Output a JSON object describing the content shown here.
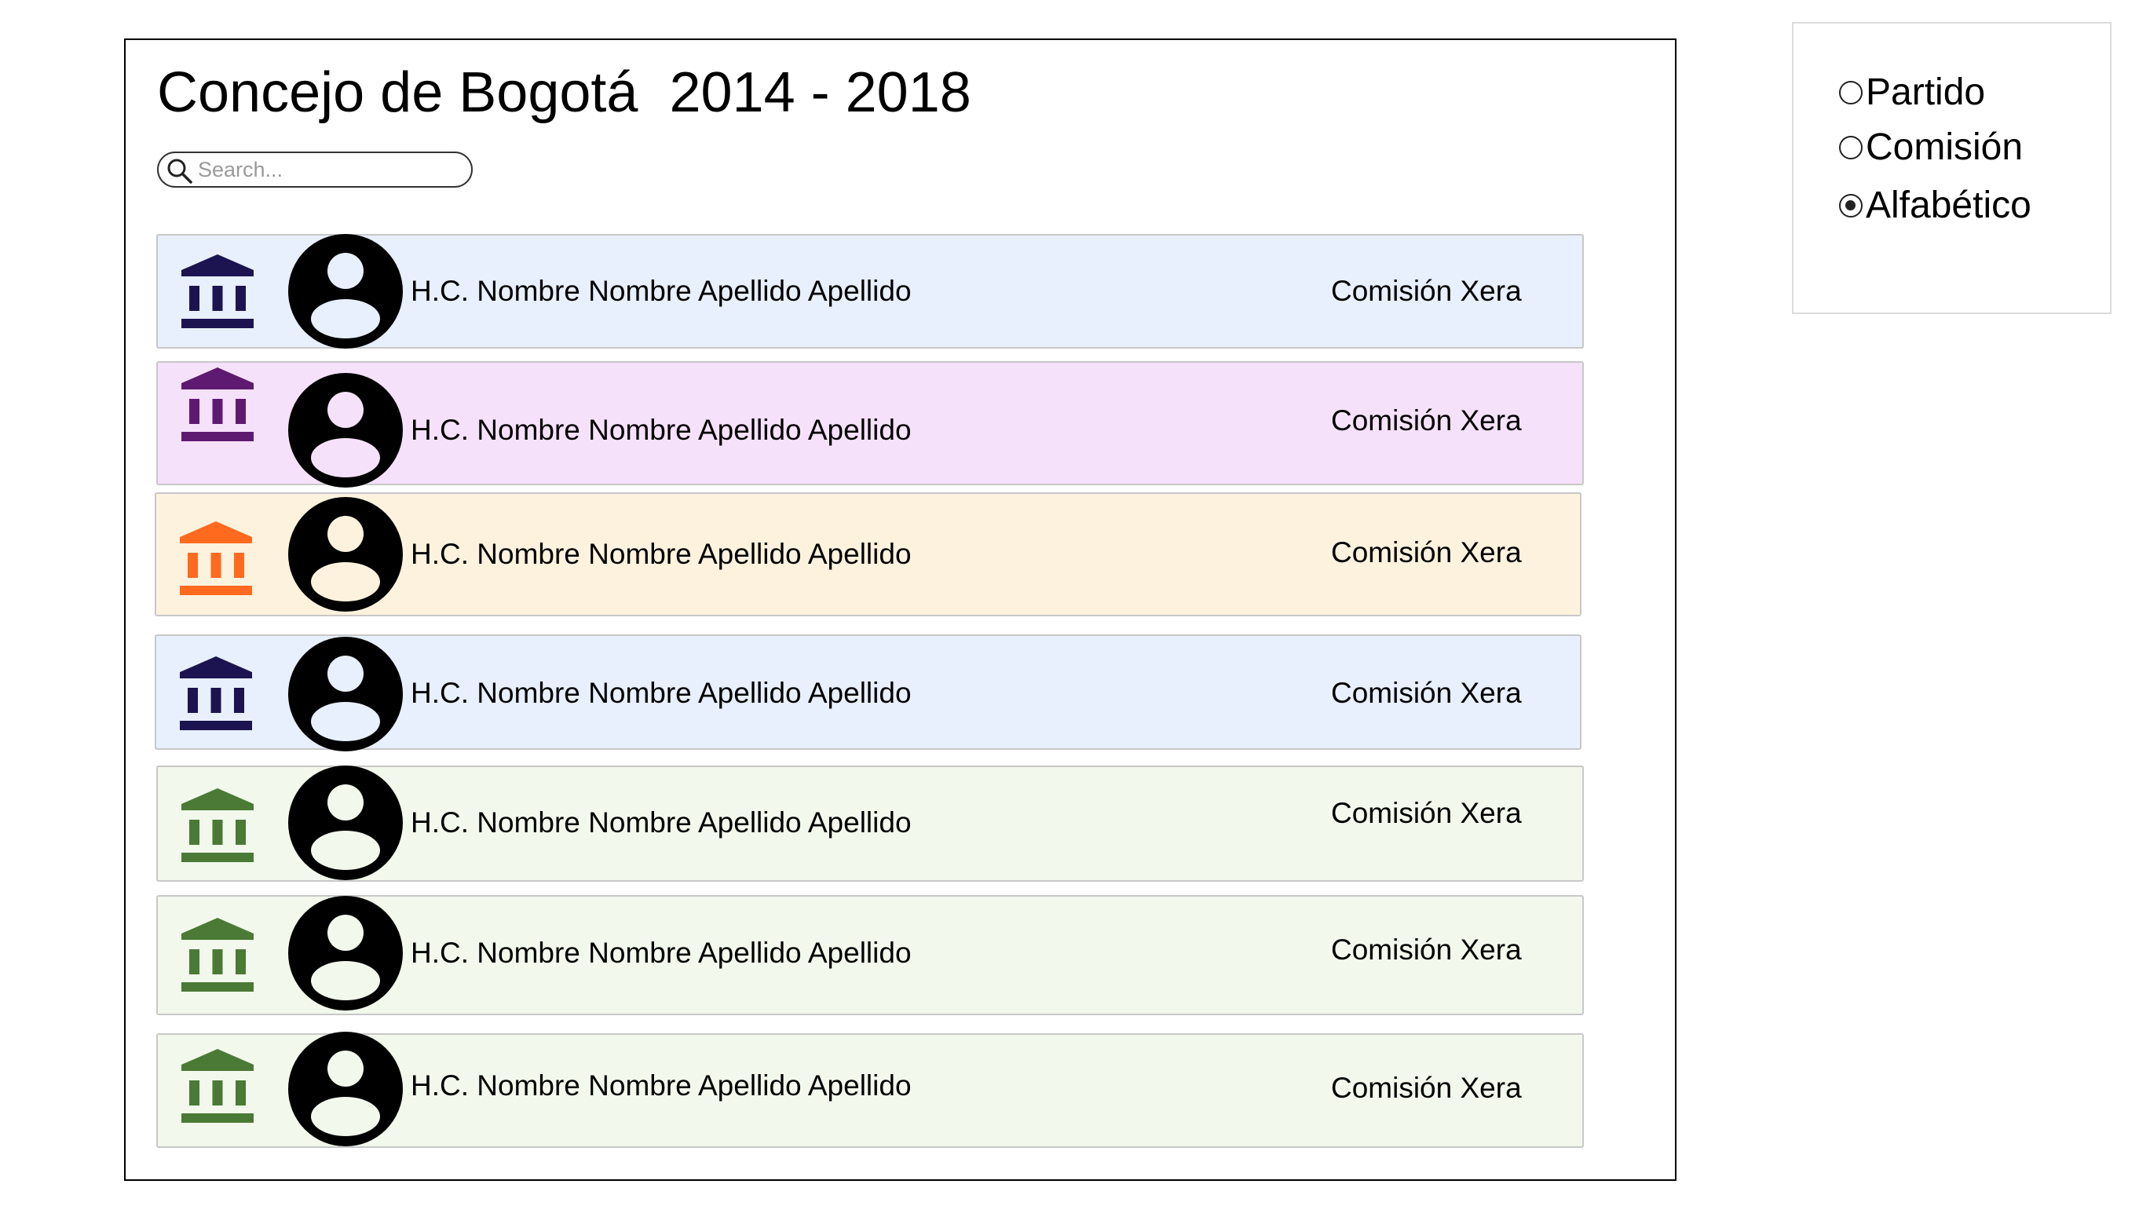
{
  "header": {
    "title": "Concejo de Bogotá  2014 - 2018"
  },
  "search": {
    "placeholder": "Search...",
    "value": ""
  },
  "colors": {
    "navy_icon": "#1b1450",
    "purple_icon": "#5e1a70",
    "orange_icon": "#ff6a1f",
    "green_icon": "#4a7a35",
    "blue_bg": "#e8effd",
    "purple_bg": "#f6e1fb",
    "orange_bg": "#fdf2dd",
    "green_bg": "#f2f8ec"
  },
  "councillors": [
    {
      "name": "H.C. Nombre Nombre Apellido Apellido",
      "commission": "Comisión Xera",
      "party_color": "#1b1450",
      "background": "#e8effd",
      "party_icon": "institution-icon",
      "avatar_icon": "person-icon"
    },
    {
      "name": "H.C. Nombre Nombre Apellido Apellido",
      "commission": "Comisión Xera",
      "party_color": "#5e1a70",
      "background": "#f6e1fb",
      "party_icon": "institution-icon",
      "avatar_icon": "person-icon"
    },
    {
      "name": "H.C. Nombre Nombre Apellido Apellido",
      "commission": "Comisión Xera",
      "party_color": "#ff6a1f",
      "background": "#fdf2dd",
      "party_icon": "institution-icon",
      "avatar_icon": "person-icon"
    },
    {
      "name": "H.C. Nombre Nombre Apellido Apellido",
      "commission": "Comisión Xera",
      "party_color": "#1b1450",
      "background": "#e8effd",
      "party_icon": "institution-icon",
      "avatar_icon": "person-icon"
    },
    {
      "name": "H.C. Nombre Nombre Apellido Apellido",
      "commission": "Comisión Xera",
      "party_color": "#4a7a35",
      "background": "#f2f8ec",
      "party_icon": "institution-icon",
      "avatar_icon": "person-icon"
    },
    {
      "name": "H.C. Nombre Nombre Apellido Apellido",
      "commission": "Comisión Xera",
      "party_color": "#4a7a35",
      "background": "#f2f8ec",
      "party_icon": "institution-icon",
      "avatar_icon": "person-icon"
    },
    {
      "name": "H.C. Nombre Nombre Apellido Apellido",
      "commission": "Comisión Xera",
      "party_color": "#4a7a35",
      "background": "#f2f8ec",
      "party_icon": "institution-icon",
      "avatar_icon": "person-icon"
    }
  ],
  "sort_options": {
    "selected": "Alfabético",
    "items": [
      {
        "label": "Partido",
        "checked": false
      },
      {
        "label": "Comisión",
        "checked": false
      },
      {
        "label": "Alfabético",
        "checked": true
      }
    ]
  }
}
